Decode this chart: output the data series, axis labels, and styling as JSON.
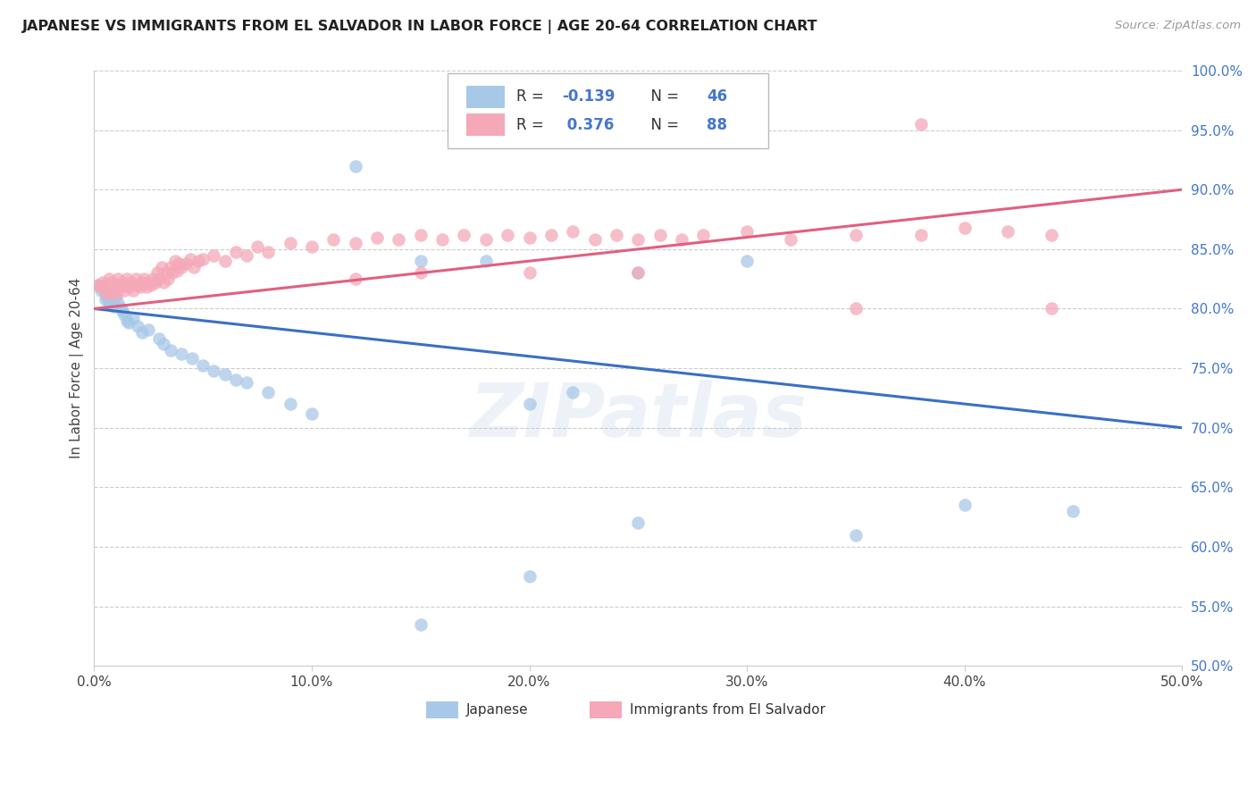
{
  "title": "JAPANESE VS IMMIGRANTS FROM EL SALVADOR IN LABOR FORCE | AGE 20-64 CORRELATION CHART",
  "source": "Source: ZipAtlas.com",
  "ylabel": "In Labor Force | Age 20-64",
  "x_tick_labels": [
    "0.0%",
    "10.0%",
    "20.0%",
    "30.0%",
    "40.0%",
    "50.0%"
  ],
  "x_tick_values": [
    0.0,
    0.1,
    0.2,
    0.3,
    0.4,
    0.5
  ],
  "y_tick_labels": [
    "50.0%",
    "55.0%",
    "60.0%",
    "65.0%",
    "70.0%",
    "75.0%",
    "80.0%",
    "85.0%",
    "90.0%",
    "95.0%",
    "100.0%"
  ],
  "y_tick_values": [
    0.5,
    0.55,
    0.6,
    0.65,
    0.7,
    0.75,
    0.8,
    0.85,
    0.9,
    0.95,
    1.0
  ],
  "xlim": [
    0.0,
    0.5
  ],
  "ylim": [
    0.5,
    1.0
  ],
  "legend_label1": "Japanese",
  "legend_label2": "Immigrants from El Salvador",
  "R1": -0.139,
  "N1": 46,
  "R2": 0.376,
  "N2": 88,
  "color_blue": "#a8c8e8",
  "color_pink": "#f4a8b8",
  "line_color_blue": "#3a6fc4",
  "line_color_pink": "#e06080",
  "watermark": "ZIPatlas",
  "blue_line_x": [
    0.0,
    0.5
  ],
  "blue_line_y": [
    0.8,
    0.7
  ],
  "pink_line_x": [
    0.0,
    0.5
  ],
  "pink_line_y": [
    0.8,
    0.9
  ],
  "blue_x": [
    0.002,
    0.003,
    0.004,
    0.005,
    0.005,
    0.006,
    0.007,
    0.008,
    0.009,
    0.01,
    0.011,
    0.012,
    0.013,
    0.014,
    0.015,
    0.016,
    0.018,
    0.02,
    0.022,
    0.025,
    0.03,
    0.032,
    0.035,
    0.04,
    0.045,
    0.05,
    0.055,
    0.06,
    0.065,
    0.07,
    0.08,
    0.09,
    0.1,
    0.12,
    0.15,
    0.18,
    0.2,
    0.22,
    0.25,
    0.3,
    0.35,
    0.4,
    0.45,
    0.25,
    0.2,
    0.15
  ],
  "blue_y": [
    0.82,
    0.815,
    0.818,
    0.812,
    0.808,
    0.81,
    0.805,
    0.808,
    0.802,
    0.81,
    0.805,
    0.8,
    0.798,
    0.795,
    0.79,
    0.788,
    0.792,
    0.785,
    0.78,
    0.782,
    0.775,
    0.77,
    0.765,
    0.762,
    0.758,
    0.752,
    0.748,
    0.745,
    0.74,
    0.738,
    0.73,
    0.72,
    0.712,
    0.92,
    0.84,
    0.84,
    0.72,
    0.73,
    0.83,
    0.84,
    0.61,
    0.635,
    0.63,
    0.62,
    0.575,
    0.535
  ],
  "pink_x": [
    0.002,
    0.003,
    0.004,
    0.005,
    0.005,
    0.006,
    0.007,
    0.008,
    0.008,
    0.009,
    0.01,
    0.01,
    0.011,
    0.012,
    0.012,
    0.013,
    0.014,
    0.015,
    0.015,
    0.016,
    0.017,
    0.018,
    0.019,
    0.02,
    0.021,
    0.022,
    0.023,
    0.024,
    0.025,
    0.026,
    0.027,
    0.028,
    0.029,
    0.03,
    0.031,
    0.032,
    0.033,
    0.034,
    0.035,
    0.036,
    0.037,
    0.038,
    0.039,
    0.04,
    0.042,
    0.044,
    0.046,
    0.048,
    0.05,
    0.055,
    0.06,
    0.065,
    0.07,
    0.075,
    0.08,
    0.09,
    0.1,
    0.11,
    0.12,
    0.13,
    0.14,
    0.15,
    0.16,
    0.17,
    0.18,
    0.19,
    0.2,
    0.21,
    0.22,
    0.23,
    0.24,
    0.25,
    0.26,
    0.27,
    0.28,
    0.3,
    0.32,
    0.35,
    0.38,
    0.4,
    0.42,
    0.44,
    0.35,
    0.44,
    0.25,
    0.2,
    0.15,
    0.12
  ],
  "pink_y": [
    0.82,
    0.818,
    0.822,
    0.815,
    0.82,
    0.812,
    0.825,
    0.818,
    0.822,
    0.815,
    0.82,
    0.812,
    0.825,
    0.818,
    0.82,
    0.822,
    0.815,
    0.825,
    0.82,
    0.818,
    0.822,
    0.815,
    0.825,
    0.82,
    0.818,
    0.822,
    0.825,
    0.818,
    0.822,
    0.82,
    0.825,
    0.822,
    0.83,
    0.825,
    0.835,
    0.822,
    0.83,
    0.825,
    0.835,
    0.83,
    0.84,
    0.832,
    0.838,
    0.835,
    0.838,
    0.842,
    0.835,
    0.84,
    0.842,
    0.845,
    0.84,
    0.848,
    0.845,
    0.852,
    0.848,
    0.855,
    0.852,
    0.858,
    0.855,
    0.86,
    0.858,
    0.862,
    0.858,
    0.862,
    0.858,
    0.862,
    0.86,
    0.862,
    0.865,
    0.858,
    0.862,
    0.858,
    0.862,
    0.858,
    0.862,
    0.865,
    0.858,
    0.862,
    0.862,
    0.868,
    0.865,
    0.862,
    0.8,
    0.8,
    0.83,
    0.83,
    0.83,
    0.825
  ],
  "pink_outlier_x": [
    0.38
  ],
  "pink_outlier_y": [
    0.955
  ]
}
